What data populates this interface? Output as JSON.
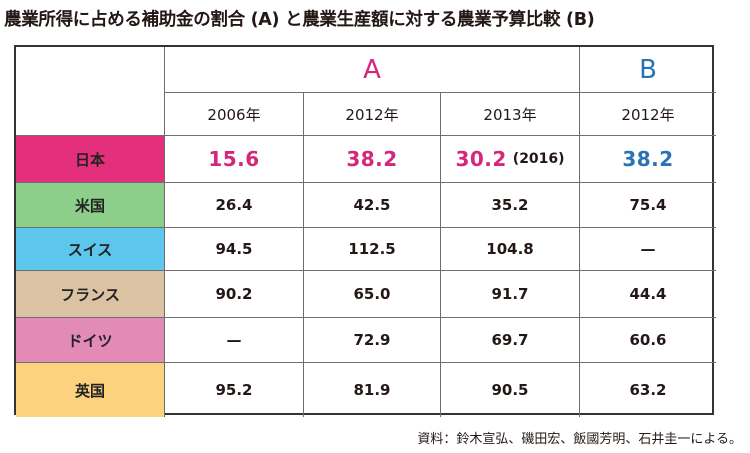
{
  "title": "農業所得に占める補助金の割合 (A) と農業生産額に対する農業予算比較 (B)",
  "colors": {
    "magenta": "#d4267a",
    "blue": "#2a72b5",
    "japan_bg": "#e4307c",
    "us_bg": "#8dce8a",
    "swiss_bg": "#5cc6ec",
    "france_bg": "#dbc2a3",
    "germany_bg": "#e18bb6",
    "uk_bg": "#fdd27f"
  },
  "header": {
    "group_a": "A",
    "group_b": "B",
    "years": [
      "2006年",
      "2012年",
      "2013年",
      "2012年"
    ]
  },
  "rows": [
    {
      "country": "日本",
      "values": [
        "15.6",
        "38.2",
        "30.2",
        "38.2"
      ],
      "note": "(2016)"
    },
    {
      "country": "米国",
      "values": [
        "26.4",
        "42.5",
        "35.2",
        "75.4"
      ]
    },
    {
      "country": "スイス",
      "values": [
        "94.5",
        "112.5",
        "104.8",
        "—"
      ]
    },
    {
      "country": "フランス",
      "values": [
        "90.2",
        "65.0",
        "91.7",
        "44.4"
      ]
    },
    {
      "country": "ドイツ",
      "values": [
        "—",
        "72.9",
        "69.7",
        "60.6"
      ]
    },
    {
      "country": "英国",
      "values": [
        "95.2",
        "81.9",
        "90.5",
        "63.2"
      ]
    }
  ],
  "source": "資料：鈴木宣弘、磯田宏、飯國芳明、石井圭一による。"
}
